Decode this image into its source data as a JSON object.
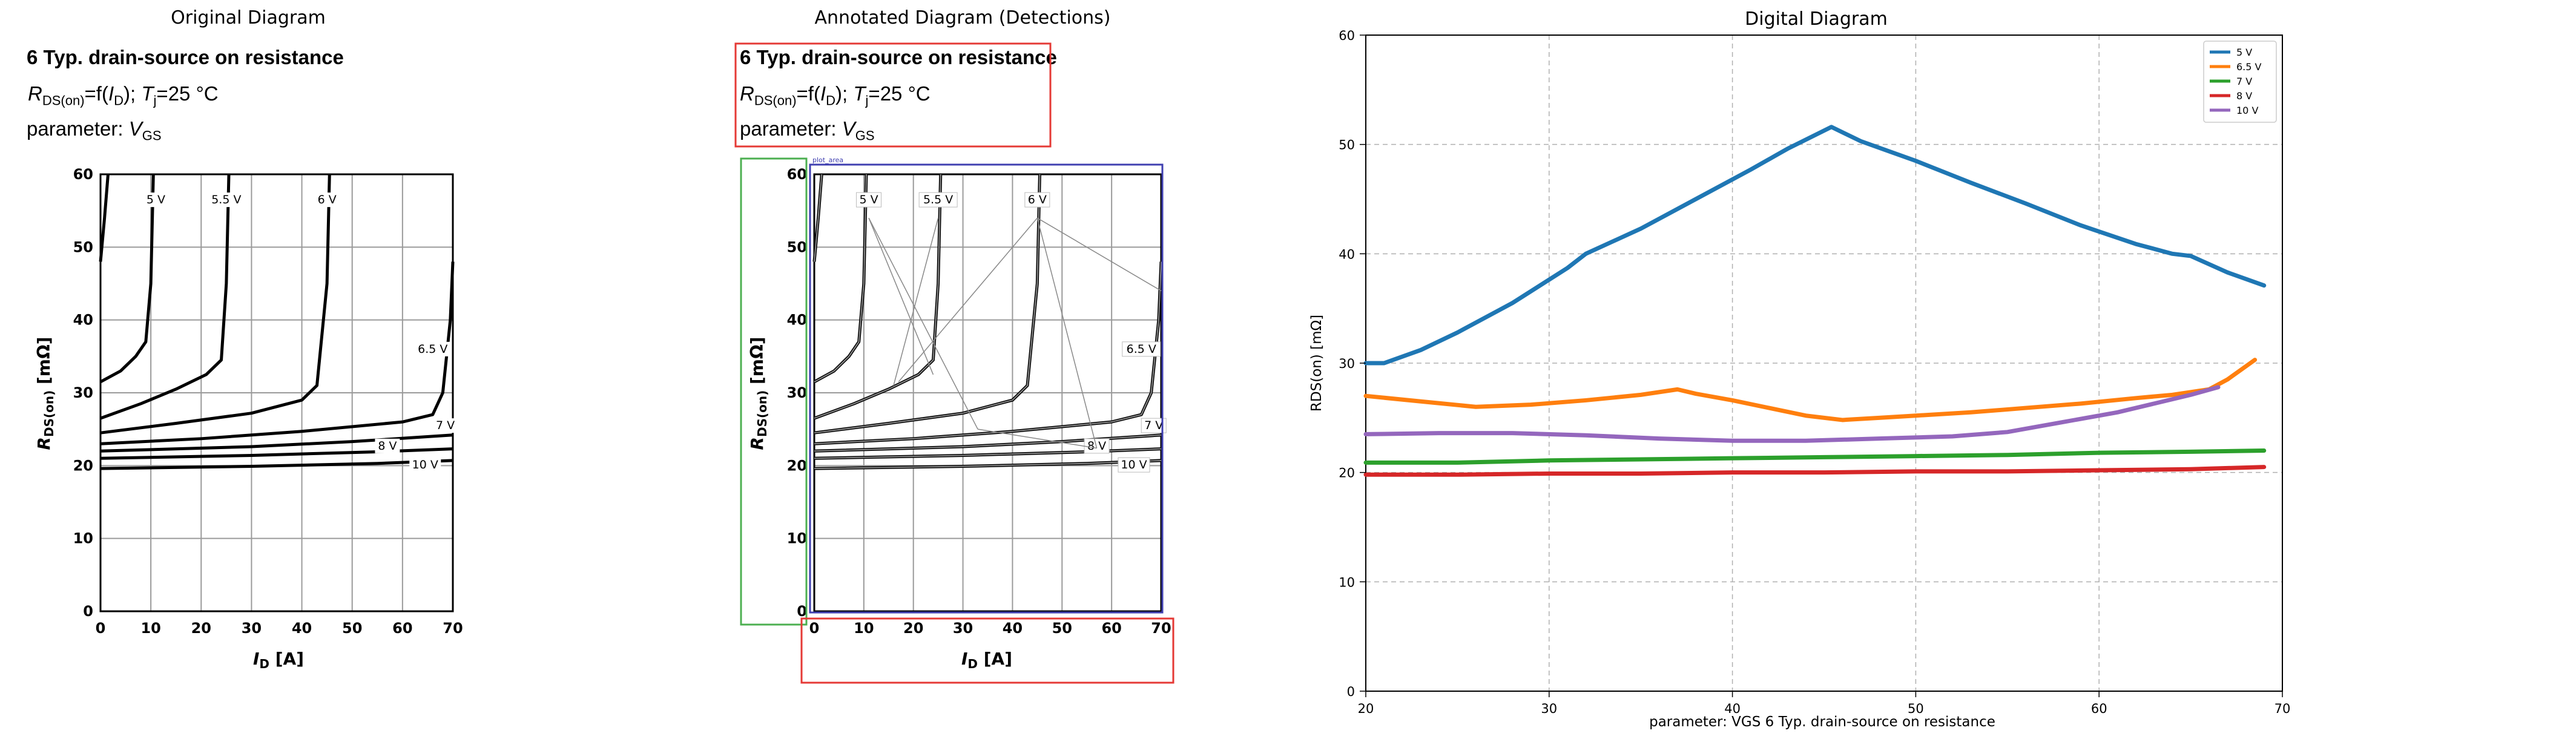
{
  "panels": {
    "original_title": "Original Diagram",
    "annotated_title": "Annotated Diagram (Detections)",
    "digital_title": "Digital Diagram"
  },
  "heading": {
    "title": "6 Typ. drain-source on resistance",
    "formula_r": "R",
    "formula_sub": "DS(on)",
    "formula_mid": "=f(",
    "formula_i": "I",
    "formula_i_sub": "D",
    "formula_end": "); ",
    "formula_t": "T",
    "formula_t_sub": "j",
    "formula_temp": "=25 °C",
    "param_prefix": "parameter: ",
    "param_v": "V",
    "param_sub": "GS"
  },
  "original_chart": {
    "ylabel_main": "R",
    "ylabel_sub": "DS(on)",
    "ylabel_unit": " [mΩ]",
    "xlabel_main": "I",
    "xlabel_sub": "D",
    "xlabel_unit": " [A]",
    "x_ticks": [
      "0",
      "10",
      "20",
      "30",
      "40",
      "50",
      "60",
      "70"
    ],
    "y_ticks": [
      "0",
      "10",
      "20",
      "30",
      "40",
      "50",
      "60"
    ],
    "curve_labels": [
      "5 V",
      "5.5 V",
      "6 V",
      "6.5 V",
      "7 V",
      "8 V",
      "10 V"
    ]
  },
  "annotated_chart": {
    "box_label": "plot_area"
  },
  "chart_data": {
    "type": "line",
    "title": "Digital Diagram",
    "xlabel": "parameter: VGS 6 Typ. drain-source on resistance",
    "ylabel": "RDS(on) [mΩ]",
    "xlim": [
      20,
      70
    ],
    "ylim": [
      0,
      60
    ],
    "x_ticks": [
      20,
      30,
      40,
      50,
      60,
      70
    ],
    "y_ticks": [
      0,
      10,
      20,
      30,
      40,
      50,
      60
    ],
    "grid": true,
    "legend_position": "top-right",
    "series": [
      {
        "name": "5 V",
        "color": "#1f77b4",
        "x": [
          20,
          21,
          23,
          25,
          28,
          31,
          32,
          35,
          38,
          41,
          43,
          45.4,
          47,
          50,
          53,
          56,
          59,
          62,
          64,
          65,
          67,
          69
        ],
        "y": [
          30,
          30,
          31.2,
          32.8,
          35.5,
          38.7,
          40,
          42.3,
          45,
          47.7,
          49.6,
          51.6,
          50.3,
          48.5,
          46.5,
          44.6,
          42.6,
          40.9,
          40,
          39.8,
          38.3,
          37.1
        ]
      },
      {
        "name": "6.5 V",
        "color": "#ff7f0e",
        "x": [
          20,
          23,
          26,
          29,
          32,
          35,
          37,
          38,
          40,
          42,
          44,
          46,
          48,
          50,
          53,
          56,
          59,
          62,
          64,
          66,
          67,
          68,
          68.5
        ],
        "y": [
          27,
          26.5,
          26,
          26.2,
          26.6,
          27.1,
          27.6,
          27.2,
          26.6,
          25.9,
          25.2,
          24.8,
          25,
          25.2,
          25.5,
          25.9,
          26.3,
          26.8,
          27.1,
          27.6,
          28.5,
          29.7,
          30.3
        ]
      },
      {
        "name": "7 V",
        "color": "#2ca02c",
        "x": [
          20,
          25,
          30,
          35,
          40,
          45,
          50,
          55,
          60,
          65,
          69
        ],
        "y": [
          20.9,
          20.9,
          21.1,
          21.2,
          21.3,
          21.4,
          21.5,
          21.6,
          21.8,
          21.9,
          22
        ]
      },
      {
        "name": "8 V",
        "color": "#d62728",
        "x": [
          20,
          25,
          30,
          35,
          40,
          45,
          50,
          55,
          60,
          65,
          69
        ],
        "y": [
          19.8,
          19.8,
          19.9,
          19.9,
          20,
          20,
          20.1,
          20.1,
          20.2,
          20.3,
          20.5
        ]
      },
      {
        "name": "10 V",
        "color": "#9467bd",
        "x": [
          20,
          24,
          28,
          32,
          36,
          40,
          44,
          48,
          52,
          55,
          58,
          61,
          63,
          65,
          66.5
        ],
        "y": [
          23.5,
          23.6,
          23.6,
          23.4,
          23.1,
          22.9,
          22.9,
          23.1,
          23.3,
          23.7,
          24.6,
          25.5,
          26.3,
          27.1,
          27.8
        ]
      }
    ]
  }
}
